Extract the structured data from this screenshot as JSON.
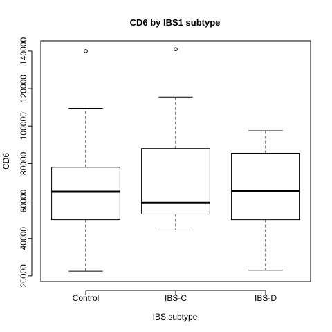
{
  "chart_data": {
    "type": "boxplot",
    "title": "CD6 by IBS1 subtype",
    "xlabel": "IBS.subtype",
    "ylabel": "CD6",
    "categories": [
      "Control",
      "IBS-C",
      "IBS-D"
    ],
    "boxes": [
      {
        "category": "Control",
        "whisker_low": 22500,
        "q1": 50000,
        "median": 65000,
        "q3": 78000,
        "whisker_high": 109500,
        "outliers": [
          140000
        ]
      },
      {
        "category": "IBS-C",
        "whisker_low": 44500,
        "q1": 53000,
        "median": 59000,
        "q3": 88000,
        "whisker_high": 115500,
        "outliers": [
          141000
        ]
      },
      {
        "category": "IBS-D",
        "whisker_low": 23000,
        "q1": 50000,
        "median": 65500,
        "q3": 85500,
        "whisker_high": 97500,
        "outliers": []
      }
    ],
    "y_ticks": [
      20000,
      40000,
      60000,
      80000,
      100000,
      120000,
      140000
    ],
    "y_tick_labels": [
      "20000",
      "40000",
      "60000",
      "80000",
      "100000",
      "120000",
      "140000"
    ],
    "ylim": [
      17000,
      145500
    ],
    "grid": false,
    "legend": "none"
  }
}
